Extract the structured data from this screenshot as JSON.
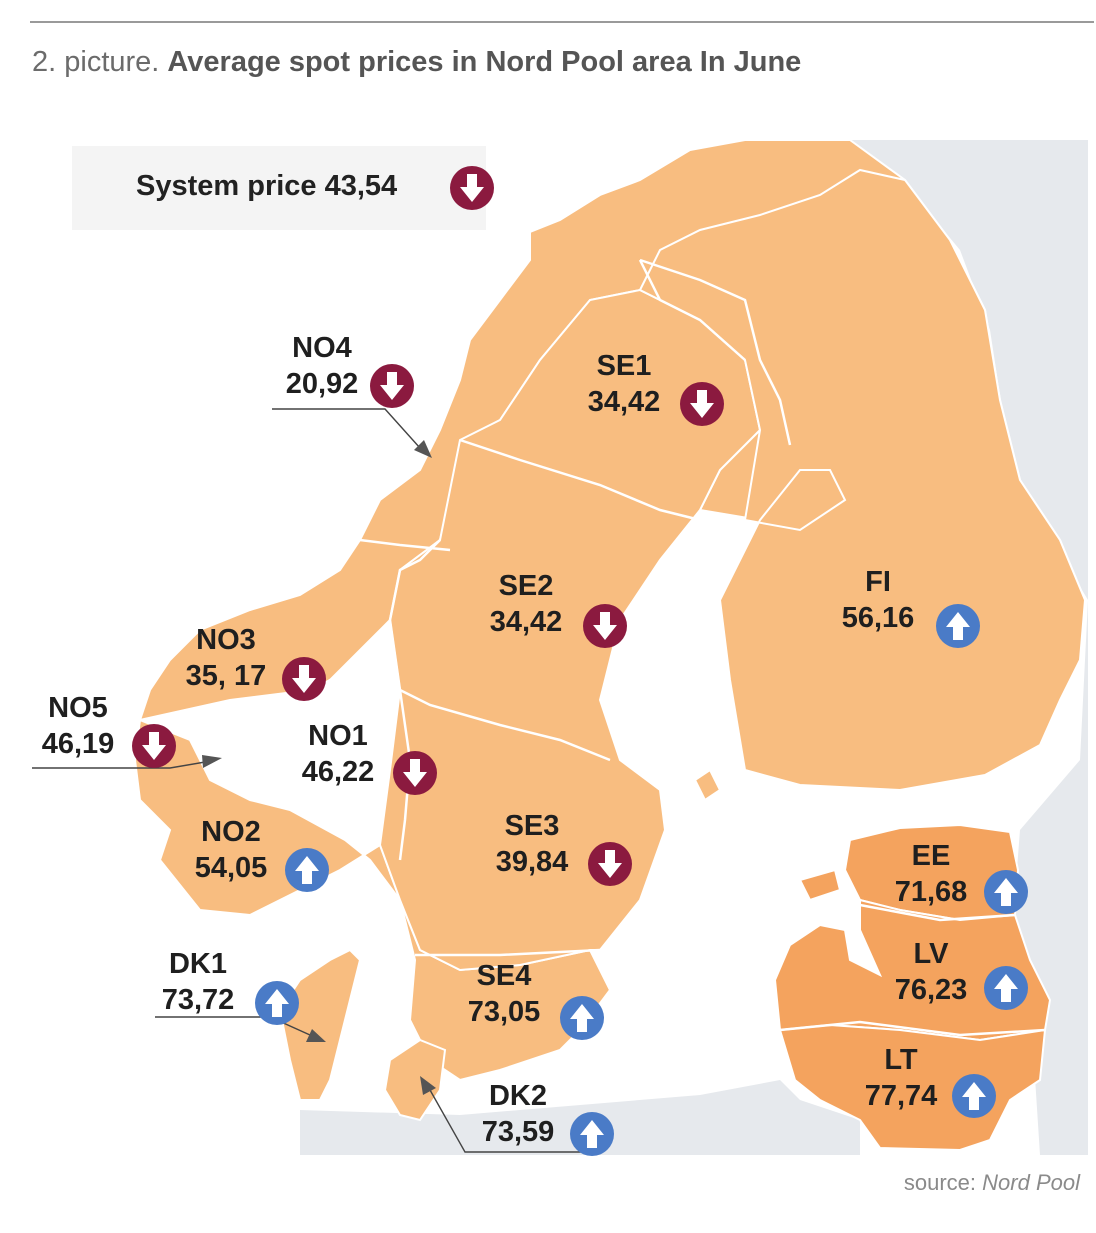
{
  "header": {
    "lead": "2. picture.",
    "title": "Average spot prices in Nord Pool area In June"
  },
  "system": {
    "label": "System price 43,54",
    "trend": "down"
  },
  "colors": {
    "down": "#8b1a3f",
    "up": "#4a7bc7",
    "land_nordic": "#f8bd80",
    "land_baltic": "#f4a35e",
    "land_other": "#e6e9ed",
    "border": "#ffffff"
  },
  "areas": [
    {
      "code": "NO4",
      "value": "20,92",
      "trend": "down"
    },
    {
      "code": "SE1",
      "value": "34,42",
      "trend": "down"
    },
    {
      "code": "SE2",
      "value": "34,42",
      "trend": "down"
    },
    {
      "code": "FI",
      "value": "56,16",
      "trend": "up"
    },
    {
      "code": "NO3",
      "value": "35, 17",
      "trend": "down"
    },
    {
      "code": "NO5",
      "value": "46,19",
      "trend": "down"
    },
    {
      "code": "NO1",
      "value": "46,22",
      "trend": "down"
    },
    {
      "code": "NO2",
      "value": "54,05",
      "trend": "up"
    },
    {
      "code": "SE3",
      "value": "39,84",
      "trend": "down"
    },
    {
      "code": "EE",
      "value": "71,68",
      "trend": "up"
    },
    {
      "code": "LV",
      "value": "76,23",
      "trend": "up"
    },
    {
      "code": "LT",
      "value": "77,74",
      "trend": "up"
    },
    {
      "code": "DK1",
      "value": "73,72",
      "trend": "up"
    },
    {
      "code": "SE4",
      "value": "73,05",
      "trend": "up"
    },
    {
      "code": "DK2",
      "value": "73,59",
      "trend": "up"
    }
  ],
  "source": {
    "prefix": "source:",
    "name": "Nord Pool"
  }
}
